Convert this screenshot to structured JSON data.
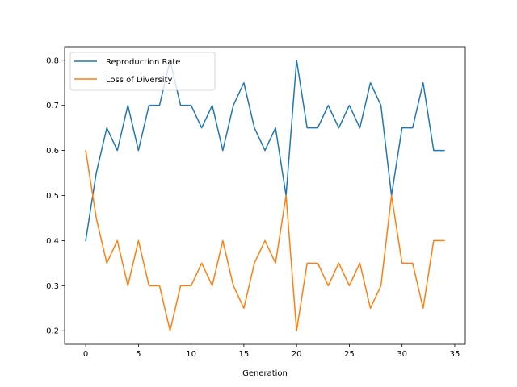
{
  "chart_data": {
    "type": "line",
    "xlabel": "Generation",
    "ylabel": "",
    "title": "",
    "xlim": [
      -2,
      36
    ],
    "ylim": [
      0.17,
      0.83
    ],
    "xticks": [
      0,
      5,
      10,
      15,
      20,
      25,
      30,
      35
    ],
    "yticks": [
      0.2,
      0.3,
      0.4,
      0.5,
      0.6,
      0.7,
      0.8
    ],
    "grid": false,
    "legend_position": "top-left",
    "x": [
      0,
      1,
      2,
      3,
      4,
      5,
      6,
      7,
      8,
      9,
      10,
      11,
      12,
      13,
      14,
      15,
      16,
      17,
      18,
      19,
      20,
      21,
      22,
      23,
      24,
      25,
      26,
      27,
      28,
      29,
      30,
      31,
      32,
      33,
      34
    ],
    "series": [
      {
        "name": "Reproduction Rate",
        "color": "#1f77b4",
        "values": [
          0.4,
          0.55,
          0.65,
          0.6,
          0.7,
          0.6,
          0.7,
          0.7,
          0.8,
          0.7,
          0.7,
          0.65,
          0.7,
          0.6,
          0.7,
          0.75,
          0.65,
          0.6,
          0.65,
          0.5,
          0.8,
          0.65,
          0.65,
          0.7,
          0.65,
          0.7,
          0.65,
          0.75,
          0.7,
          0.5,
          0.65,
          0.65,
          0.75,
          0.6,
          0.6
        ]
      },
      {
        "name": "Loss of Diversity",
        "color": "#ff7f0e",
        "values": [
          0.6,
          0.45,
          0.35,
          0.4,
          0.3,
          0.4,
          0.3,
          0.3,
          0.2,
          0.3,
          0.3,
          0.35,
          0.3,
          0.4,
          0.3,
          0.25,
          0.35,
          0.4,
          0.35,
          0.5,
          0.2,
          0.35,
          0.35,
          0.3,
          0.35,
          0.3,
          0.35,
          0.25,
          0.3,
          0.5,
          0.35,
          0.35,
          0.25,
          0.4,
          0.4
        ]
      }
    ]
  }
}
